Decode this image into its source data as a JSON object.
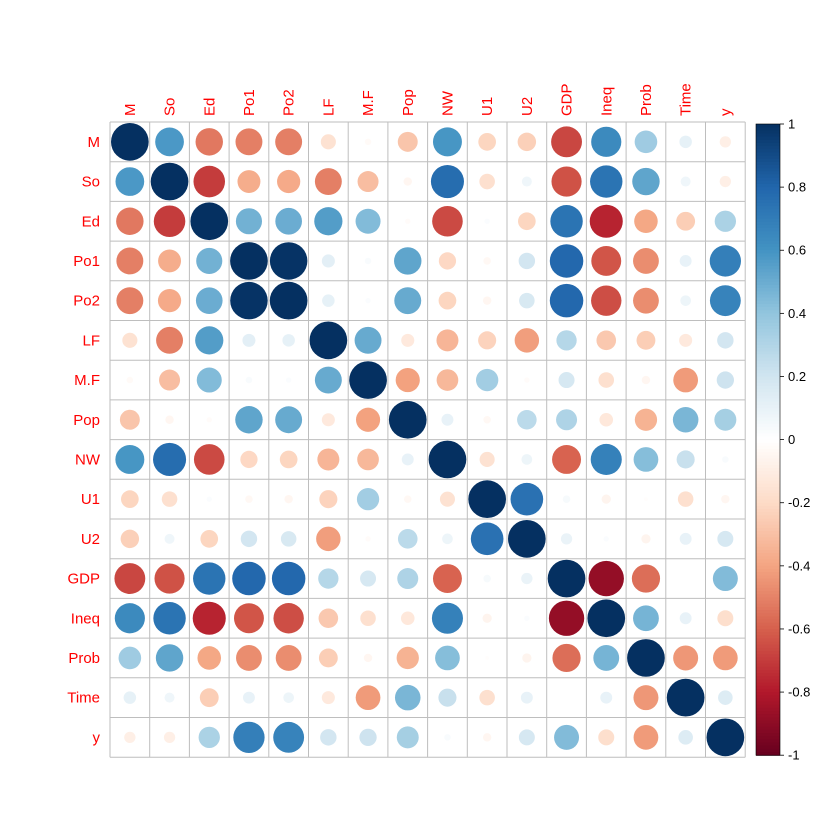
{
  "chart_data": {
    "type": "heatmap",
    "style": "circle correlation matrix",
    "variables": [
      "M",
      "So",
      "Ed",
      "Po1",
      "Po2",
      "LF",
      "M.F",
      "Pop",
      "NW",
      "U1",
      "U2",
      "GDP",
      "Ineq",
      "Prob",
      "Time",
      "y"
    ],
    "matrix": [
      [
        1.0,
        0.58,
        -0.53,
        -0.51,
        -0.51,
        -0.16,
        -0.03,
        -0.28,
        0.59,
        -0.22,
        -0.24,
        -0.67,
        0.64,
        0.36,
        0.11,
        -0.09
      ],
      [
        0.58,
        1.0,
        -0.7,
        -0.37,
        -0.38,
        -0.51,
        -0.31,
        -0.05,
        0.77,
        -0.17,
        0.07,
        -0.64,
        0.74,
        0.53,
        0.07,
        -0.09
      ],
      [
        -0.53,
        -0.7,
        1.0,
        0.48,
        0.5,
        0.56,
        0.44,
        -0.02,
        -0.66,
        0.02,
        -0.22,
        0.74,
        -0.77,
        -0.39,
        -0.25,
        0.32
      ],
      [
        -0.51,
        -0.37,
        0.48,
        1.0,
        0.99,
        0.12,
        0.03,
        0.53,
        -0.21,
        -0.04,
        0.19,
        0.79,
        -0.63,
        -0.47,
        0.1,
        0.69
      ],
      [
        -0.51,
        -0.38,
        0.5,
        0.99,
        1.0,
        0.11,
        0.02,
        0.51,
        -0.22,
        -0.05,
        0.17,
        0.79,
        -0.65,
        -0.47,
        0.08,
        0.67
      ],
      [
        -0.16,
        -0.51,
        0.56,
        0.12,
        0.11,
        1.0,
        0.51,
        -0.12,
        -0.34,
        -0.23,
        -0.42,
        0.29,
        -0.27,
        -0.25,
        -0.12,
        0.19
      ],
      [
        -0.03,
        -0.31,
        0.44,
        0.03,
        0.02,
        0.51,
        1.0,
        -0.41,
        -0.33,
        0.35,
        -0.02,
        0.18,
        -0.17,
        -0.05,
        -0.43,
        0.21
      ],
      [
        -0.28,
        -0.05,
        -0.02,
        0.53,
        0.51,
        -0.12,
        -0.41,
        1.0,
        0.1,
        -0.04,
        0.27,
        0.31,
        -0.13,
        -0.35,
        0.46,
        0.34
      ],
      [
        0.59,
        0.77,
        -0.66,
        -0.21,
        -0.22,
        -0.34,
        -0.33,
        0.1,
        1.0,
        -0.16,
        0.08,
        -0.59,
        0.68,
        0.43,
        0.23,
        0.03
      ],
      [
        -0.22,
        -0.17,
        0.02,
        -0.04,
        -0.05,
        -0.23,
        0.35,
        -0.04,
        -0.16,
        1.0,
        0.75,
        0.04,
        -0.06,
        -0.01,
        -0.17,
        -0.05
      ],
      [
        -0.24,
        0.07,
        -0.22,
        0.19,
        0.17,
        -0.42,
        -0.02,
        0.27,
        0.08,
        0.75,
        1.0,
        0.09,
        0.02,
        -0.06,
        0.1,
        0.18
      ],
      [
        -0.67,
        -0.64,
        0.74,
        0.79,
        0.79,
        0.29,
        0.18,
        0.31,
        -0.59,
        0.04,
        0.09,
        1.0,
        -0.88,
        -0.56,
        0.0,
        0.44
      ],
      [
        0.64,
        0.74,
        -0.77,
        -0.63,
        -0.65,
        -0.27,
        -0.17,
        -0.13,
        0.68,
        -0.06,
        0.02,
        -0.88,
        1.0,
        0.47,
        0.1,
        -0.18
      ],
      [
        0.36,
        0.53,
        -0.39,
        -0.47,
        -0.47,
        -0.25,
        -0.05,
        -0.35,
        0.43,
        -0.01,
        -0.06,
        -0.56,
        0.47,
        1.0,
        -0.44,
        -0.43
      ],
      [
        0.11,
        0.07,
        -0.25,
        0.1,
        0.08,
        -0.12,
        -0.43,
        0.46,
        0.23,
        -0.17,
        0.1,
        0.0,
        0.1,
        -0.44,
        1.0,
        0.15
      ],
      [
        -0.09,
        -0.09,
        0.32,
        0.69,
        0.67,
        0.19,
        0.21,
        0.34,
        0.03,
        -0.05,
        0.18,
        0.44,
        -0.18,
        -0.43,
        0.15,
        1.0
      ]
    ],
    "colorbar": {
      "range": [
        -1,
        1
      ],
      "ticks": [
        1,
        0.8,
        0.6,
        0.4,
        0.2,
        0,
        -0.2,
        -0.4,
        -0.6,
        -0.8,
        -1
      ],
      "tick_labels": [
        "1",
        "0.8",
        "0.6",
        "0.4",
        "0.2",
        "0",
        "-0.2",
        "-0.4",
        "-0.6",
        "-0.8",
        "-1"
      ],
      "palette": [
        "#67001f",
        "#b2182b",
        "#d6604d",
        "#f4a582",
        "#fddbc7",
        "#ffffff",
        "#d1e5f0",
        "#92c5de",
        "#4393c3",
        "#2166ac",
        "#053061"
      ]
    },
    "colors": {
      "label": "#ff0000",
      "grid": "#bebebe"
    }
  }
}
